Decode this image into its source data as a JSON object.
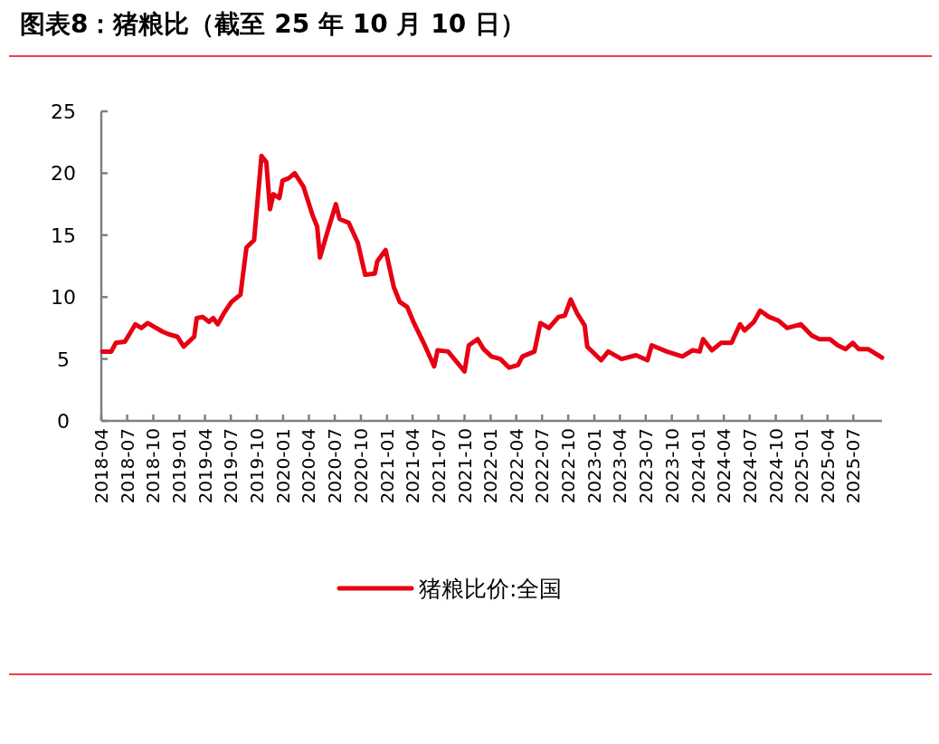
{
  "chart_data": {
    "type": "line",
    "title": "图表8：猪粮比（截至 25 年 10 月 10 日）",
    "x": [
      "2018-04-05",
      "2018-05-06",
      "2018-05-22",
      "2018-06-23",
      "2018-07-30",
      "2018-08-20",
      "2018-09-11",
      "2018-11-03",
      "2018-11-24",
      "2018-12-25",
      "2019-01-16",
      "2019-02-22",
      "2019-03-03",
      "2019-03-24",
      "2019-04-15",
      "2019-04-30",
      "2019-05-16",
      "2019-06-07",
      "2019-07-03",
      "2019-08-04",
      "2019-08-25",
      "2019-09-21",
      "2019-10-17",
      "2019-11-03",
      "2019-11-16",
      "2019-11-28",
      "2019-12-19",
      "2019-12-30",
      "2020-01-21",
      "2020-02-11",
      "2020-03-13",
      "2020-04-14",
      "2020-04-30",
      "2020-05-10",
      "2020-06-07",
      "2020-07-05",
      "2020-07-18",
      "2020-08-19",
      "2020-09-20",
      "2020-10-16",
      "2020-11-19",
      "2020-11-28",
      "2020-12-27",
      "2021-01-25",
      "2021-02-15",
      "2021-03-13",
      "2021-04-04",
      "2021-05-10",
      "2021-06-16",
      "2021-06-28",
      "2021-08-04",
      "2021-10-01",
      "2021-10-16",
      "2021-11-16",
      "2021-12-07",
      "2022-01-04",
      "2022-02-04",
      "2022-03-07",
      "2022-04-07",
      "2022-04-23",
      "2022-06-04",
      "2022-06-25",
      "2022-07-25",
      "2022-08-28",
      "2022-09-19",
      "2022-10-10",
      "2022-11-01",
      "2022-11-28",
      "2022-12-07",
      "2023-01-25",
      "2023-02-19",
      "2023-04-07",
      "2023-05-28",
      "2023-07-07",
      "2023-07-22",
      "2023-09-13",
      "2023-11-07",
      "2023-12-13",
      "2024-01-07",
      "2024-01-19",
      "2024-02-19",
      "2024-03-22",
      "2024-04-28",
      "2024-05-28",
      "2024-06-13",
      "2024-07-16",
      "2024-08-07",
      "2024-09-07",
      "2024-10-10",
      "2024-11-10",
      "2024-12-28",
      "2025-02-04",
      "2025-03-04",
      "2025-04-10",
      "2025-05-07",
      "2025-06-04",
      "2025-06-29",
      "2025-07-20",
      "2025-08-22",
      "2025-10-10"
    ],
    "series": [
      {
        "name": "猪粮比价:全国",
        "color": "#e60012",
        "values": [
          5.6,
          5.6,
          6.3,
          6.4,
          7.8,
          7.5,
          7.9,
          7.2,
          7.0,
          6.8,
          6.0,
          6.8,
          8.3,
          8.4,
          8.0,
          8.3,
          7.8,
          8.7,
          9.6,
          10.2,
          14.0,
          14.6,
          21.4,
          20.9,
          17.1,
          18.3,
          18.0,
          19.4,
          19.6,
          20.0,
          18.9,
          16.6,
          15.7,
          13.2,
          15.4,
          17.5,
          16.3,
          16.0,
          14.4,
          11.8,
          11.9,
          12.9,
          13.8,
          10.8,
          9.6,
          9.2,
          8.0,
          6.3,
          4.4,
          5.7,
          5.6,
          4.0,
          6.1,
          6.6,
          5.8,
          5.2,
          5.0,
          4.3,
          4.5,
          5.2,
          5.6,
          7.9,
          7.5,
          8.4,
          8.5,
          9.8,
          8.7,
          7.7,
          6.0,
          4.9,
          5.6,
          5.0,
          5.3,
          4.9,
          6.1,
          5.6,
          5.2,
          5.7,
          5.6,
          6.6,
          5.7,
          6.3,
          6.3,
          7.8,
          7.3,
          8.0,
          8.9,
          8.4,
          8.1,
          7.5,
          7.8,
          6.9,
          6.6,
          6.6,
          6.1,
          5.8,
          6.3,
          5.8,
          5.8,
          5.1
        ]
      }
    ],
    "xlim": [
      "2018-04-01",
      "2025-10-10"
    ],
    "xticks": [
      "2018-04",
      "2018-07",
      "2018-10",
      "2019-01",
      "2019-04",
      "2019-07",
      "2019-10",
      "2020-01",
      "2020-04",
      "2020-07",
      "2020-10",
      "2021-01",
      "2021-04",
      "2021-07",
      "2021-10",
      "2022-01",
      "2022-04",
      "2022-07",
      "2022-10",
      "2023-01",
      "2023-04",
      "2023-07",
      "2023-10",
      "2024-01",
      "2024-04",
      "2024-07",
      "2024-10",
      "2025-01",
      "2025-04",
      "2025-07"
    ],
    "ylim": [
      0,
      25
    ],
    "yticks": [
      0,
      5,
      10,
      15,
      20,
      25
    ],
    "legend": "bottom"
  }
}
